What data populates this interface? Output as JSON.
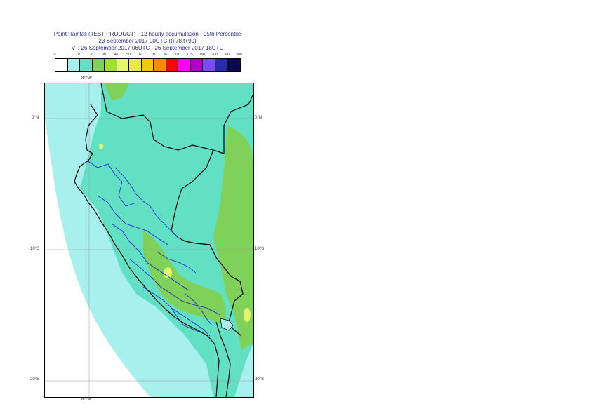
{
  "title": {
    "line1": "Point Rainfall (TEST PRODUCT) - 12 hourly accumulation - 95th Percentile",
    "line2": "23 September 2017 00UTC (t+78,t+90)",
    "line3": "VT: 26 September 2017 06UTC - 26 September 2017 18UTC"
  },
  "legend": {
    "labels": [
      "0",
      "1",
      "10",
      "20",
      "30",
      "40",
      "50",
      "60",
      "70",
      "80",
      "100",
      "125",
      "150",
      "200",
      "300",
      "500"
    ],
    "colors": [
      "#ffffff",
      "#a8f0ee",
      "#62e0c4",
      "#7fd15a",
      "#9ee02a",
      "#e6f56a",
      "#e8e84a",
      "#f2c80a",
      "#ff8a00",
      "#ff0000",
      "#ff00ff",
      "#b000c8",
      "#7a4cf0",
      "#2a2ab0",
      "#0a0a50"
    ]
  },
  "map": {
    "lon_labels": {
      "top": "80°W",
      "bottom": "80°W"
    },
    "lat_labels": {
      "lat0": "0°N",
      "lat10": "10°S",
      "lat20": "20°S"
    },
    "colors": {
      "ocean_light": "#a8f0ee",
      "land_teal": "#62e0c4",
      "green": "#7fd15a",
      "bright_green": "#9ee02a",
      "yellow": "#e6f56a",
      "white": "#ffffff",
      "coast": "#000000",
      "borders": "#1a1ad0",
      "grid": "#9a9a9a"
    }
  }
}
